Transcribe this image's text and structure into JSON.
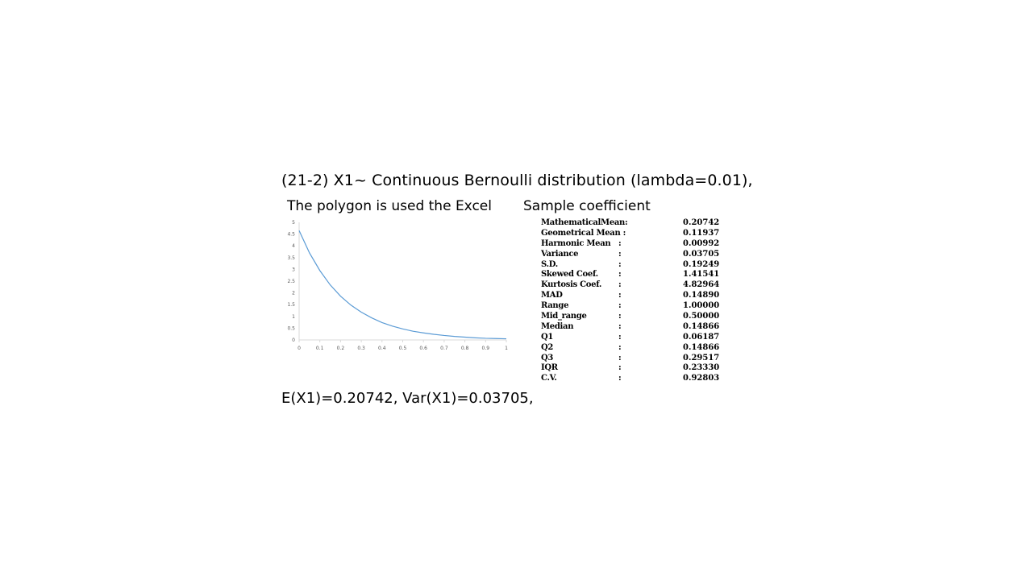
{
  "heading": "(21-2) X1~ Continuous Bernoulli distribution (lambda=0.01),",
  "chart_caption": "The polygon is used the Excel",
  "coef_caption": "Sample coefficient",
  "footer": "E(X1)=0.20742, Var(X1)=0.03705,",
  "coefficients": [
    {
      "name": "MathematicalMean:",
      "colon": "",
      "value": "0.20742"
    },
    {
      "name": "Geometrical Mean :",
      "colon": "",
      "value": "0.11937"
    },
    {
      "name": "Harmonic Mean",
      "colon": ":",
      "value": "0.00992"
    },
    {
      "name": "Variance",
      "colon": ":",
      "value": "0.03705"
    },
    {
      "name": "S.D.",
      "colon": ":",
      "value": "0.19249"
    },
    {
      "name": "Skewed Coef.",
      "colon": ":",
      "value": "1.41541"
    },
    {
      "name": "Kurtosis Coef.",
      "colon": ":",
      "value": "4.82964"
    },
    {
      "name": "MAD",
      "colon": ":",
      "value": "0.14890"
    },
    {
      "name": "Range",
      "colon": ":",
      "value": "1.00000"
    },
    {
      "name": "Mid_range",
      "colon": ":",
      "value": "0.50000"
    },
    {
      "name": "Median",
      "colon": ":",
      "value": "0.14866"
    },
    {
      "name": "Q1",
      "colon": ":",
      "value": "0.06187"
    },
    {
      "name": "Q2",
      "colon": ":",
      "value": "0.14866"
    },
    {
      "name": "Q3",
      "colon": ":",
      "value": "0.29517"
    },
    {
      "name": "IQR",
      "colon": ":",
      "value": "0.23330"
    },
    {
      "name": "C.V.",
      "colon": ":",
      "value": "0.92803"
    }
  ],
  "chart_data": {
    "type": "line",
    "title": "",
    "xlabel": "",
    "ylabel": "",
    "xlim": [
      0,
      1
    ],
    "ylim": [
      0,
      5
    ],
    "x_ticks": [
      "0",
      "0.1",
      "0.2",
      "0.3",
      "0.4",
      "0.5",
      "0.6",
      "0.7",
      "0.8",
      "0.9",
      "1"
    ],
    "y_ticks": [
      "0",
      "0.5",
      "1",
      "1.5",
      "2",
      "2.5",
      "3",
      "3.5",
      "4",
      "4.5",
      "5"
    ],
    "grid": false,
    "legend": "none",
    "line_color": "#5b9bd5",
    "axis_color": "#d9d9d9",
    "series": [
      {
        "x": [
          0,
          0.05,
          0.1,
          0.15,
          0.2,
          0.25,
          0.3,
          0.35,
          0.4,
          0.45,
          0.5,
          0.55,
          0.6,
          0.65,
          0.7,
          0.75,
          0.8,
          0.85,
          0.9,
          0.95,
          1
        ],
        "values": [
          4.65,
          3.7,
          2.95,
          2.34,
          1.86,
          1.48,
          1.18,
          0.94,
          0.74,
          0.59,
          0.47,
          0.37,
          0.3,
          0.24,
          0.19,
          0.15,
          0.12,
          0.09,
          0.07,
          0.06,
          0.05
        ]
      }
    ]
  }
}
